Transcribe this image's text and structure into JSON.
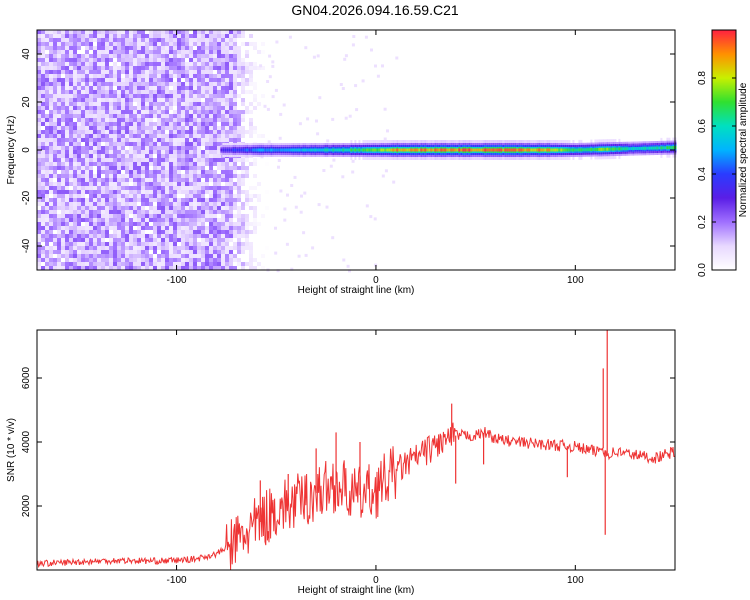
{
  "title": "GN04.2026.094.16.59.C21",
  "colors": {
    "snr_line": "#ee3333",
    "colormap": [
      "#ffffff",
      "#e8d8ff",
      "#a070ff",
      "#5a1ee6",
      "#2a3cff",
      "#00b4ff",
      "#00e0c0",
      "#30e030",
      "#c8f000",
      "#ff9000",
      "#ff2040"
    ]
  },
  "chart_data": [
    {
      "type": "heatmap",
      "name": "spectrogram",
      "xlabel": "Height of straight line (km)",
      "ylabel": "Frequency (Hz)",
      "xlim": [
        -170,
        150
      ],
      "ylim": [
        -50,
        50
      ],
      "xticks": [
        -100,
        0,
        100
      ],
      "xtick_labels": [
        "-100",
        "0",
        "100"
      ],
      "yticks": [
        -40,
        -20,
        0,
        20,
        40
      ],
      "ytick_labels": [
        "-40",
        "-20",
        "0",
        "20",
        "40"
      ],
      "noise_region_xmax": -70,
      "ridge": [
        {
          "x": -78,
          "amplitude": 0.35
        },
        {
          "x": -60,
          "amplitude": 0.5
        },
        {
          "x": -40,
          "amplitude": 0.55
        },
        {
          "x": -20,
          "amplitude": 0.65
        },
        {
          "x": 0,
          "amplitude": 0.8
        },
        {
          "x": 10,
          "amplitude": 0.95
        },
        {
          "x": 50,
          "amplitude": 1.0
        },
        {
          "x": 85,
          "amplitude": 0.95
        },
        {
          "x": 100,
          "amplitude": 0.7
        },
        {
          "x": 115,
          "amplitude": 0.8
        },
        {
          "x": 130,
          "amplitude": 0.6
        },
        {
          "x": 150,
          "amplitude": 0.75
        }
      ],
      "colorbar": {
        "label": "Normalized spectral amplitude",
        "range": [
          0.0,
          1.0
        ],
        "ticks": [
          0.0,
          0.2,
          0.4,
          0.6,
          0.8
        ],
        "tick_labels": [
          "0.0",
          "0.2",
          "0.4",
          "0.6",
          "0.8"
        ]
      }
    },
    {
      "type": "line",
      "name": "snr",
      "xlabel": "Height of straight line (km)",
      "ylabel": "SNR (10 * v/v)",
      "xlim": [
        -170,
        150
      ],
      "ylim": [
        0,
        7500
      ],
      "xticks": [
        -100,
        0,
        100
      ],
      "xtick_labels": [
        "-100",
        "0",
        "100"
      ],
      "yticks": [
        2000,
        4000,
        6000
      ],
      "ytick_labels": [
        "2000",
        "4000",
        "6000"
      ],
      "x": [
        -170,
        -150,
        -130,
        -110,
        -100,
        -90,
        -80,
        -70,
        -60,
        -50,
        -40,
        -30,
        -20,
        -10,
        0,
        10,
        20,
        30,
        40,
        50,
        55,
        60,
        70,
        80,
        90,
        100,
        110,
        114,
        116,
        120,
        130,
        140,
        150
      ],
      "y": [
        200,
        250,
        300,
        280,
        300,
        350,
        500,
        900,
        1400,
        1900,
        2100,
        2400,
        2700,
        2300,
        2500,
        3100,
        3500,
        3900,
        4200,
        4200,
        4300,
        4100,
        4000,
        3950,
        3900,
        3850,
        3700,
        3800,
        3600,
        3700,
        3600,
        3500,
        3700
      ],
      "spikes": [
        {
          "x": -58,
          "y": 2800
        },
        {
          "x": -44,
          "y": 3000
        },
        {
          "x": -30,
          "y": 3800
        },
        {
          "x": -20,
          "y": 4300
        },
        {
          "x": -8,
          "y": 4000
        },
        {
          "x": 38,
          "y": 5200
        },
        {
          "x": 40,
          "y": 2700
        },
        {
          "x": 54,
          "y": 3300
        },
        {
          "x": 96,
          "y": 2900
        },
        {
          "x": 114,
          "y": 6300
        },
        {
          "x": 115,
          "y": 1100
        },
        {
          "x": 116,
          "y": 7500
        }
      ]
    }
  ]
}
